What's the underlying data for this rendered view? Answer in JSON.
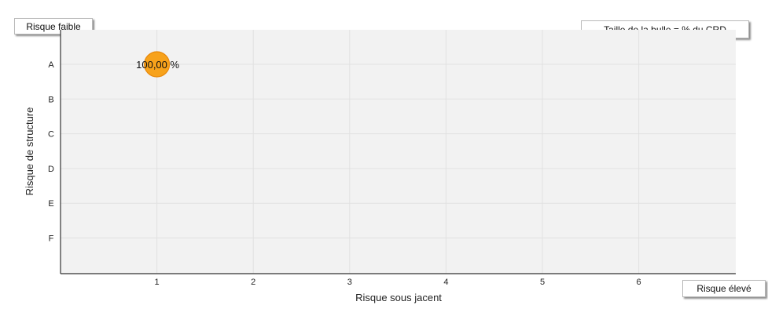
{
  "labels": {
    "low_risk": "Risque faible",
    "high_risk": "Risque élevé",
    "bubble_note": "Taille de la bulle = % du CRD"
  },
  "colors": {
    "plot_bg": "#f2f2f2",
    "grid": "#e1e1e1",
    "axis": "#333333",
    "bubble_fill": "#f7a21b",
    "bubble_stroke": "#e8880a"
  },
  "chart_data": {
    "type": "scatter",
    "title": "",
    "xlabel": "Risque sous jacent",
    "ylabel": "Risque de structure",
    "x_ticks": [
      "1",
      "2",
      "3",
      "4",
      "5",
      "6"
    ],
    "y_categories": [
      "A",
      "B",
      "C",
      "D",
      "E",
      "F"
    ],
    "xlim": [
      0,
      7
    ],
    "grid": true,
    "points": [
      {
        "x": 1,
        "y": "A",
        "size_percent": 100,
        "label": "100,00 %"
      }
    ]
  }
}
